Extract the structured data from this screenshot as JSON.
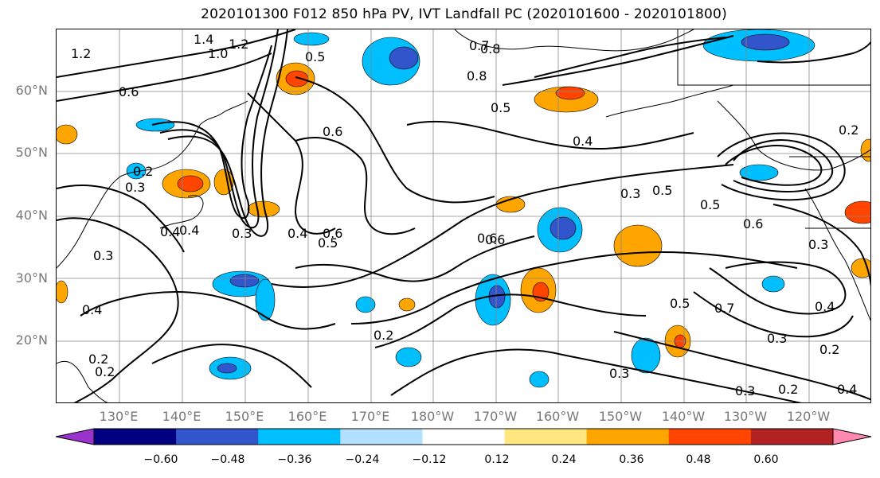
{
  "title": "2020101300 F012 850 hPa PV, IVT Landfall PC (2020101600 - 2020101800)",
  "lat_labels": [
    "60°N",
    "50°N",
    "40°N",
    "30°N",
    "20°N"
  ],
  "lon_labels": [
    "130°E",
    "140°E",
    "150°E",
    "160°E",
    "170°E",
    "180°W",
    "170°W",
    "160°W",
    "150°W",
    "140°W",
    "130°W",
    "120°W"
  ],
  "contour_labels": [
    "1.4",
    "1.0",
    "1.2",
    "1.2",
    "0.6",
    "0.5",
    "0.8",
    "0.7",
    "0.8",
    "0.5",
    "0.6",
    "0.4",
    "0.2",
    "0.3",
    "0.4",
    "0.3",
    "0.5",
    "0.6",
    "0.5",
    "0.6",
    "0.4",
    "0.2",
    "0.4",
    "0.3",
    "0.4",
    "0.5",
    "0.6",
    "0.3",
    "0.6",
    "0.5",
    "0.7",
    "0.3",
    "0.2",
    "0.3",
    "0.2",
    "0.3",
    "0.4",
    "0.2",
    "0.2",
    "0.3",
    "0.4",
    "0.2"
  ],
  "colorbar": {
    "colors": [
      "#9933cc",
      "#000080",
      "#3355cc",
      "#00bfff",
      "#b3e0ff",
      "#ffffff",
      "#ffe680",
      "#ffa500",
      "#ff4500",
      "#b22222",
      "#ff88b0"
    ],
    "tick_labels": [
      "−0.60",
      "−0.48",
      "−0.36",
      "−0.24",
      "−0.12",
      "0.12",
      "0.24",
      "0.36",
      "0.48",
      "0.60"
    ]
  }
}
